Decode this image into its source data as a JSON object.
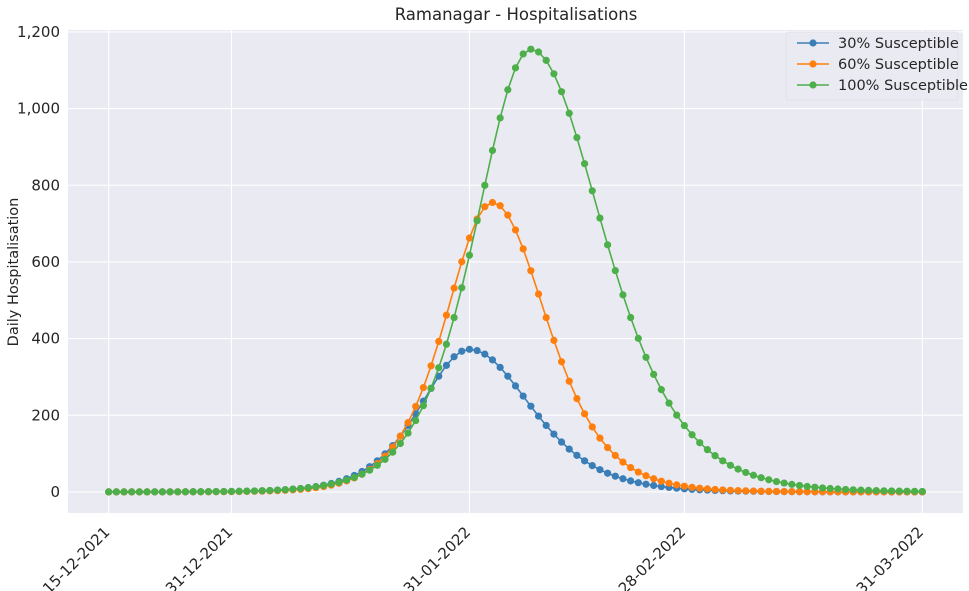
{
  "chart_data": {
    "type": "line",
    "title": "Ramanagar - Hospitalisations",
    "xlabel": "",
    "ylabel": "Daily Hospitalisation",
    "x_start": "15-12-2021",
    "x_end": "31-03-2022",
    "x_ticks": [
      "15-12-2021",
      "31-12-2021",
      "31-01-2022",
      "28-02-2022",
      "31-03-2022"
    ],
    "y_ticks": [
      "0",
      "200",
      "400",
      "600",
      "800",
      "1,000",
      "1,200"
    ],
    "ylim": [
      -55,
      1205
    ],
    "grid": true,
    "legend_position": "top-right",
    "series": [
      {
        "name": "30% Susceptible",
        "color": "#3a7eb8",
        "peak_date": "31-01-2022",
        "peak_value": 372,
        "peak_width_days": 8.6,
        "right_skew": 1.25
      },
      {
        "name": "60% Susceptible",
        "color": "#ff7f0e",
        "peak_date": "03-02-2022",
        "peak_value": 755,
        "peak_width_days": 8.2,
        "right_skew": 1.15
      },
      {
        "name": "100% Susceptible",
        "color": "#4daf4a",
        "peak_date": "08-02-2022",
        "peak_value": 1155,
        "peak_width_days": 9.6,
        "right_skew": 1.3
      }
    ]
  }
}
